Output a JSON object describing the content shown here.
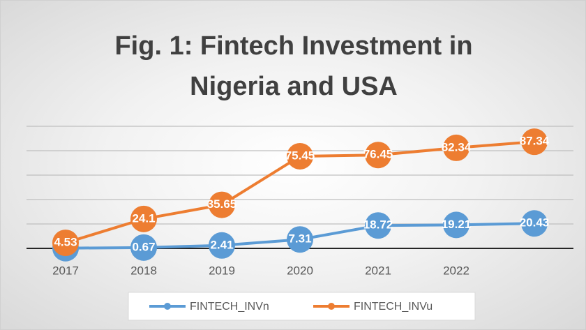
{
  "chart_data": {
    "type": "line",
    "title": "Fig. 1: Fintech Investment in Nigeria and USA",
    "categories": [
      "2017",
      "2018",
      "2019",
      "2020",
      "2021",
      "2022",
      null
    ],
    "series": [
      {
        "name": "FINTECH_INVn",
        "color": "#5b9bd5",
        "values": [
          0.17,
          0.67,
          2.41,
          7.31,
          18.72,
          19.21,
          20.43
        ]
      },
      {
        "name": "FINTECH_INVu",
        "color": "#ed7d31",
        "values": [
          4.53,
          24.1,
          35.65,
          75.45,
          76.45,
          82.34,
          87.34
        ]
      }
    ],
    "ylim": [
      0,
      100
    ],
    "yticks": [
      0,
      20,
      40,
      60,
      80,
      100
    ],
    "grid": true,
    "legend": "bottom"
  }
}
